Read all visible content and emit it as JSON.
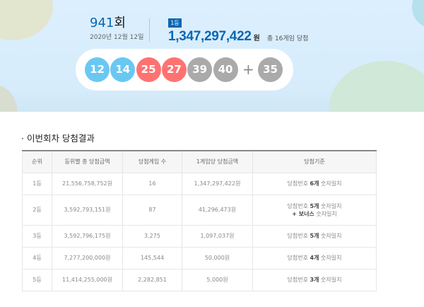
{
  "draw": {
    "round_number": "941",
    "round_suffix": "회",
    "date": "2020년 12월 12일",
    "rank_badge": "1등",
    "first_prize_amount": "1,347,297,422",
    "currency": "원",
    "winners_text": "총 16게임 당첨"
  },
  "numbers": [
    {
      "value": "12",
      "color": "#69c8f2"
    },
    {
      "value": "14",
      "color": "#69c8f2"
    },
    {
      "value": "25",
      "color": "#ff7272"
    },
    {
      "value": "27",
      "color": "#ff7272"
    },
    {
      "value": "39",
      "color": "#aaaaaa"
    },
    {
      "value": "40",
      "color": "#aaaaaa"
    }
  ],
  "plus": "+",
  "bonus": {
    "value": "35",
    "color": "#aaaaaa"
  },
  "section_title": "· 이번회차 당첨결과",
  "table": {
    "headers": [
      "순위",
      "등위별 총 당첨금액",
      "당첨게임 수",
      "1게임당 당첨금액",
      "당첨기준"
    ],
    "rows": [
      {
        "rank": "1등",
        "total": "21,556,758,752원",
        "count": "16",
        "per_game": "1,347,297,422원",
        "crit_pre": "당첨번호 ",
        "crit_bold": "6개",
        "crit_post": " 숫자일치",
        "crit2_bold": "",
        "crit2_post": ""
      },
      {
        "rank": "2등",
        "total": "3,592,793,151원",
        "count": "87",
        "per_game": "41,296,473원",
        "crit_pre": "당첨번호 ",
        "crit_bold": "5개",
        "crit_post": " 숫자일치",
        "crit2_bold": "+ 보너스",
        "crit2_post": " 숫자일치"
      },
      {
        "rank": "3등",
        "total": "3,592,796,175원",
        "count": "3,275",
        "per_game": "1,097,037원",
        "crit_pre": "당첨번호 ",
        "crit_bold": "5개",
        "crit_post": " 숫자일치",
        "crit2_bold": "",
        "crit2_post": ""
      },
      {
        "rank": "4등",
        "total": "7,277,200,000원",
        "count": "145,544",
        "per_game": "50,000원",
        "crit_pre": "당첨번호 ",
        "crit_bold": "4개",
        "crit_post": " 숫자일치",
        "crit2_bold": "",
        "crit2_post": ""
      },
      {
        "rank": "5등",
        "total": "11,414,255,000원",
        "count": "2,282,851",
        "per_game": "5,000원",
        "crit_pre": "당첨번호 ",
        "crit_bold": "3개",
        "crit_post": " 숫자일치",
        "crit2_bold": "",
        "crit2_post": ""
      }
    ]
  }
}
